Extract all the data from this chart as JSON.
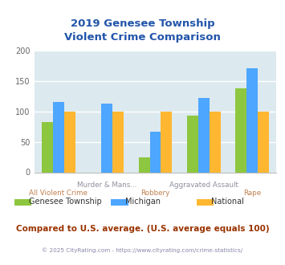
{
  "title": "2019 Genesee Township\nViolent Crime Comparison",
  "categories": [
    "All Violent Crime",
    "Murder & Mans...",
    "Robbery",
    "Aggravated Assault",
    "Rape"
  ],
  "label_row": [
    1,
    0,
    1,
    0,
    1
  ],
  "series": {
    "Genesee Township": [
      82,
      null,
      25,
      93,
      138
    ],
    "Michigan": [
      115,
      112,
      67,
      122,
      170
    ],
    "National": [
      100,
      100,
      100,
      100,
      100
    ]
  },
  "colors": {
    "Genesee Township": "#8dc63f",
    "Michigan": "#4da6ff",
    "National": "#ffb732"
  },
  "ylim": [
    0,
    200
  ],
  "yticks": [
    0,
    50,
    100,
    150,
    200
  ],
  "plot_bg_color": "#dce9ee",
  "title_color": "#2255aa",
  "label_colors": [
    "#c08050",
    "#9090a0",
    "#c08050",
    "#9090a0",
    "#c08050"
  ],
  "footer_text": "Compared to U.S. average. (U.S. average equals 100)",
  "footer_color": "#993300",
  "copyright_text": "© 2025 CityRating.com - https://www.cityrating.com/crime-statistics/",
  "copyright_color": "#8888aa",
  "legend_text_colors": [
    "#8dc63f",
    "#4da6ff",
    "#ffb732"
  ]
}
